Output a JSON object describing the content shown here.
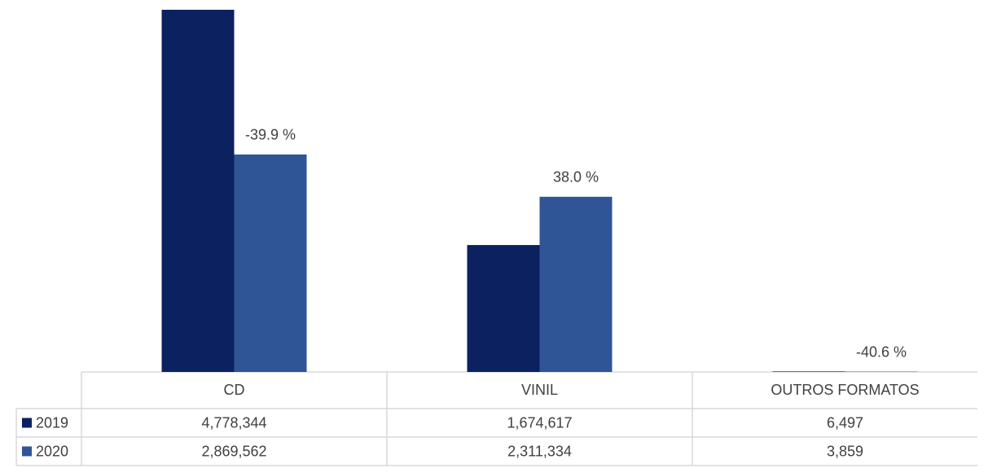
{
  "chart_data": {
    "type": "bar",
    "categories": [
      "CD",
      "VINIL",
      "OUTROS FORMATOS"
    ],
    "series": [
      {
        "name": "2019",
        "color": "#0c2160",
        "values": [
          4778344,
          1674617,
          6497
        ],
        "value_labels": [
          "4,778,344",
          "1,674,617",
          "6,497"
        ]
      },
      {
        "name": "2020",
        "color": "#2f5597",
        "values": [
          2869562,
          2311334,
          3859
        ],
        "value_labels": [
          "2,869,562",
          "2,311,334",
          "3,859"
        ]
      }
    ],
    "changes": [
      -39.9,
      38.0,
      -40.6
    ],
    "change_labels": [
      "-39.9 %",
      "38.0 %",
      "-40.6 %"
    ],
    "ylim": [
      0,
      4800000
    ],
    "data_table": true
  }
}
